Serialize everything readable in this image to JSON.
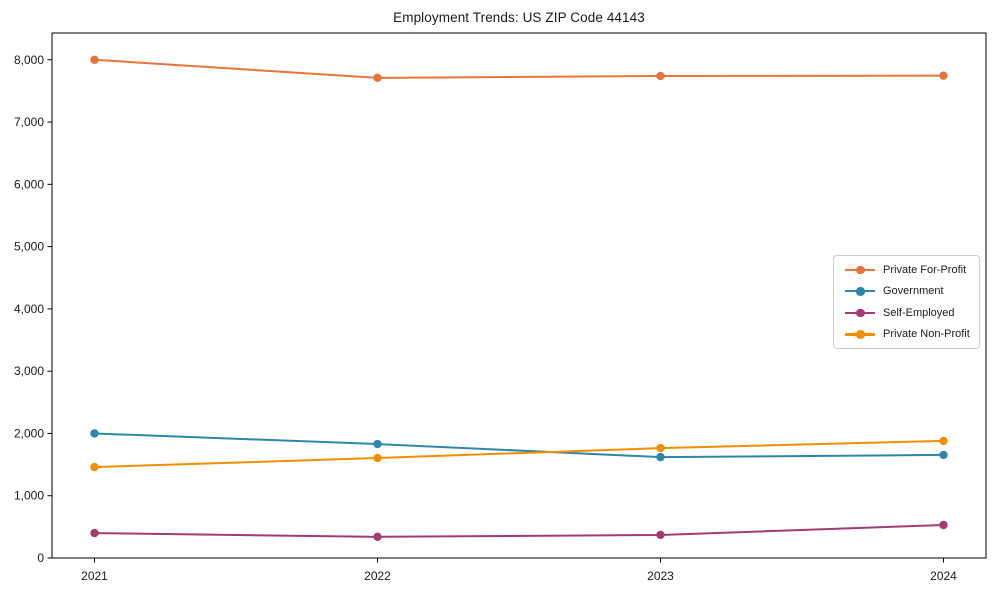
{
  "chart_data": {
    "type": "line",
    "title": "Employment Trends: US ZIP Code 44143",
    "xlabel": "",
    "ylabel": "",
    "x": [
      2021,
      2022,
      2023,
      2024
    ],
    "x_tick_labels": [
      "2021",
      "2022",
      "2023",
      "2024"
    ],
    "y_ticks": [
      0,
      1000,
      2000,
      3000,
      4000,
      5000,
      6000,
      7000,
      8000
    ],
    "y_tick_labels": [
      "0",
      "1,000",
      "2,000",
      "3,000",
      "4,000",
      "5,000",
      "6,000",
      "7,000",
      "8,000"
    ],
    "ylim": [
      0,
      8430
    ],
    "grid": false,
    "legend_position": "center-right",
    "series": [
      {
        "name": "Private For-Profit",
        "color": "#E8743B",
        "values": [
          8000,
          7710,
          7740,
          7745
        ]
      },
      {
        "name": "Government",
        "color": "#2E86AB",
        "values": [
          2000,
          1830,
          1620,
          1655
        ]
      },
      {
        "name": "Self-Employed",
        "color": "#A23B72",
        "values": [
          400,
          340,
          370,
          530
        ]
      },
      {
        "name": "Private Non-Profit",
        "color": "#F18F01",
        "values": [
          1460,
          1605,
          1765,
          1880
        ]
      }
    ]
  }
}
